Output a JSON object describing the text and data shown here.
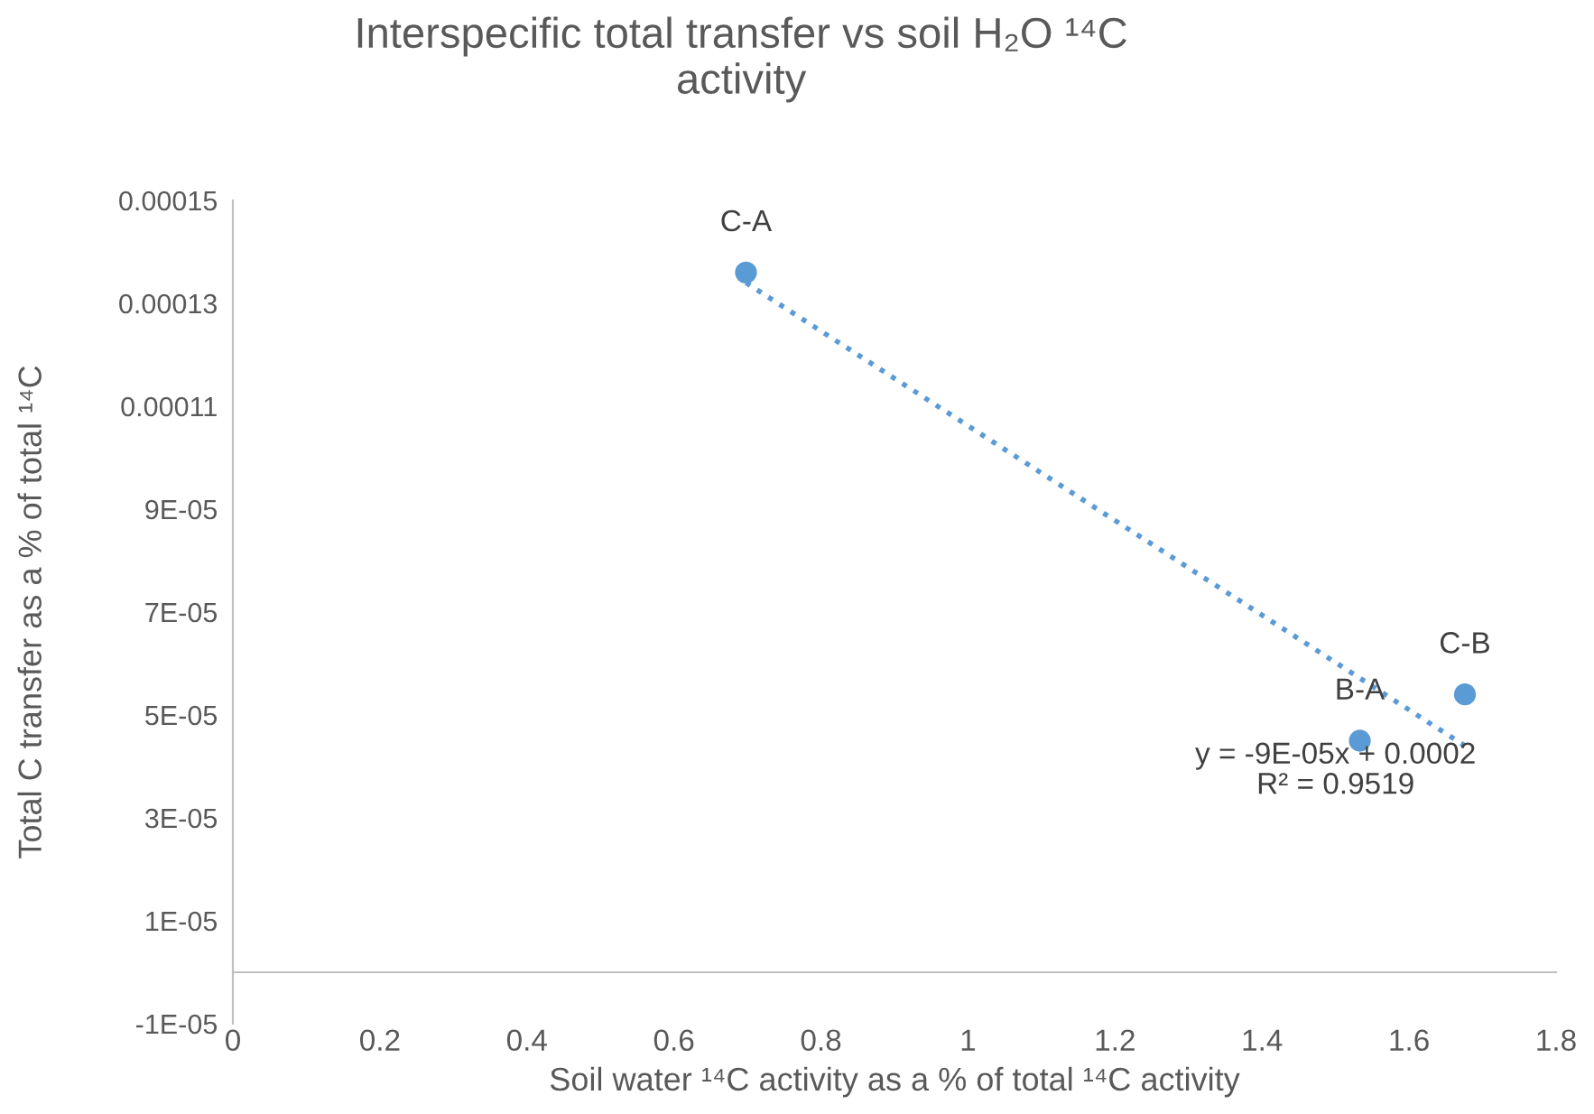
{
  "chart_data": {
    "type": "scatter",
    "title": "Interspecific total transfer vs soil H₂O ¹⁴C\nactivity",
    "xlabel": "Soil water ¹⁴C activity as a % of total ¹⁴C activity",
    "ylabel": "Total C transfer as a % of total ¹⁴C",
    "series": [
      {
        "color": "#5b9bd5",
        "marker": "circle",
        "x": [
          0.698,
          1.533,
          1.676
        ],
        "values": [
          0.000136,
          4.5e-05,
          5.4e-05
        ]
      },
      {
        "type": "line",
        "color": "#5b9bd5",
        "line_style": "dotted",
        "marker": "none",
        "x": [
          0.698,
          1.676
        ],
        "values": [
          0.000134,
          4.4e-05
        ]
      }
    ],
    "annotations": [
      {
        "text": "C-A",
        "x": 0.698,
        "y": 0.000136
      },
      {
        "text": "B-A",
        "x": 1.533,
        "y": 4.5e-05
      },
      {
        "text": "C-B",
        "x": 1.676,
        "y": 5.4e-05
      },
      "y = -9E-05x + 0.0002\nR² = 0.9519"
    ],
    "xlim": [
      0,
      1.8
    ],
    "xticks": [
      0,
      0.2,
      0.4,
      0.6,
      0.8,
      1,
      1.2,
      1.4,
      1.6,
      1.8
    ],
    "ylim": [
      -1e-05,
      0.00015
    ],
    "yticks": [
      {
        "value": -1e-05,
        "label": "-1E-05"
      },
      {
        "value": 1e-05,
        "label": "1E-05"
      },
      {
        "value": 3e-05,
        "label": "3E-05"
      },
      {
        "value": 5e-05,
        "label": "5E-05"
      },
      {
        "value": 7e-05,
        "label": "7E-05"
      },
      {
        "value": 9e-05,
        "label": "9E-05"
      },
      {
        "value": 0.00011,
        "label": "0.00011"
      },
      {
        "value": 0.00013,
        "label": "0.00013"
      },
      {
        "value": 0.00015,
        "label": "0.00015"
      }
    ],
    "grid": false,
    "legend": false
  }
}
